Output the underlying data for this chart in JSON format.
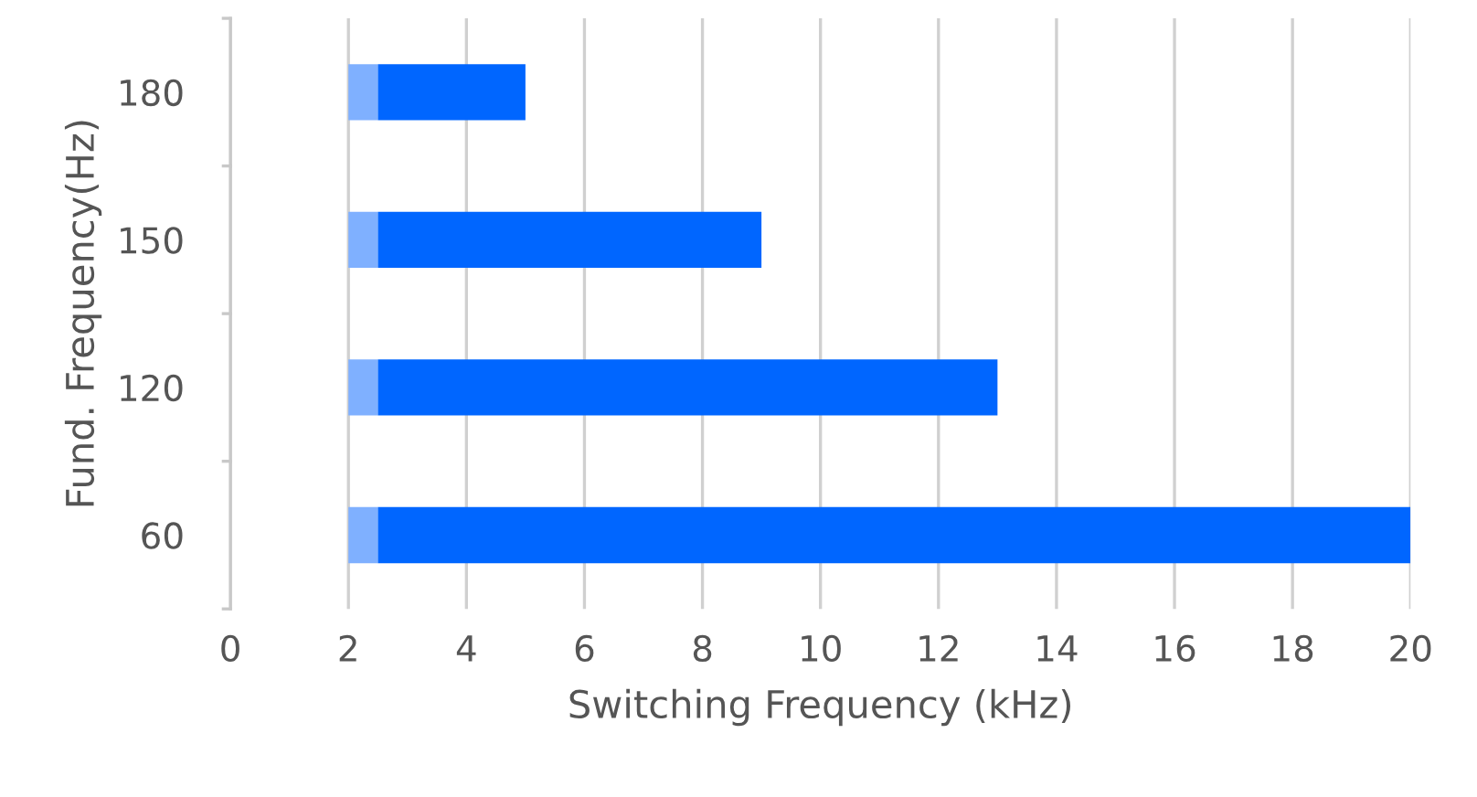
{
  "chart_data": {
    "type": "bar",
    "orientation": "horizontal",
    "xlabel": "Switching Frequency (kHz)",
    "ylabel": "Fund. Frequency(Hz)",
    "categories": [
      "180",
      "150",
      "120",
      "60"
    ],
    "series": [
      {
        "color": "#7fb0ff",
        "base": [
          2,
          2,
          2,
          2
        ],
        "values": [
          0.5,
          0.5,
          0.5,
          0.5
        ]
      },
      {
        "color": "#0066ff",
        "base": [
          2.5,
          2.5,
          2.5,
          2.5
        ],
        "values": [
          2.5,
          6.5,
          10.5,
          17.5
        ]
      }
    ],
    "xlim": [
      0,
      20
    ],
    "xticks": [
      0,
      2,
      4,
      6,
      8,
      10,
      12,
      14,
      16,
      18,
      20
    ],
    "grid": "x",
    "legend": false
  }
}
